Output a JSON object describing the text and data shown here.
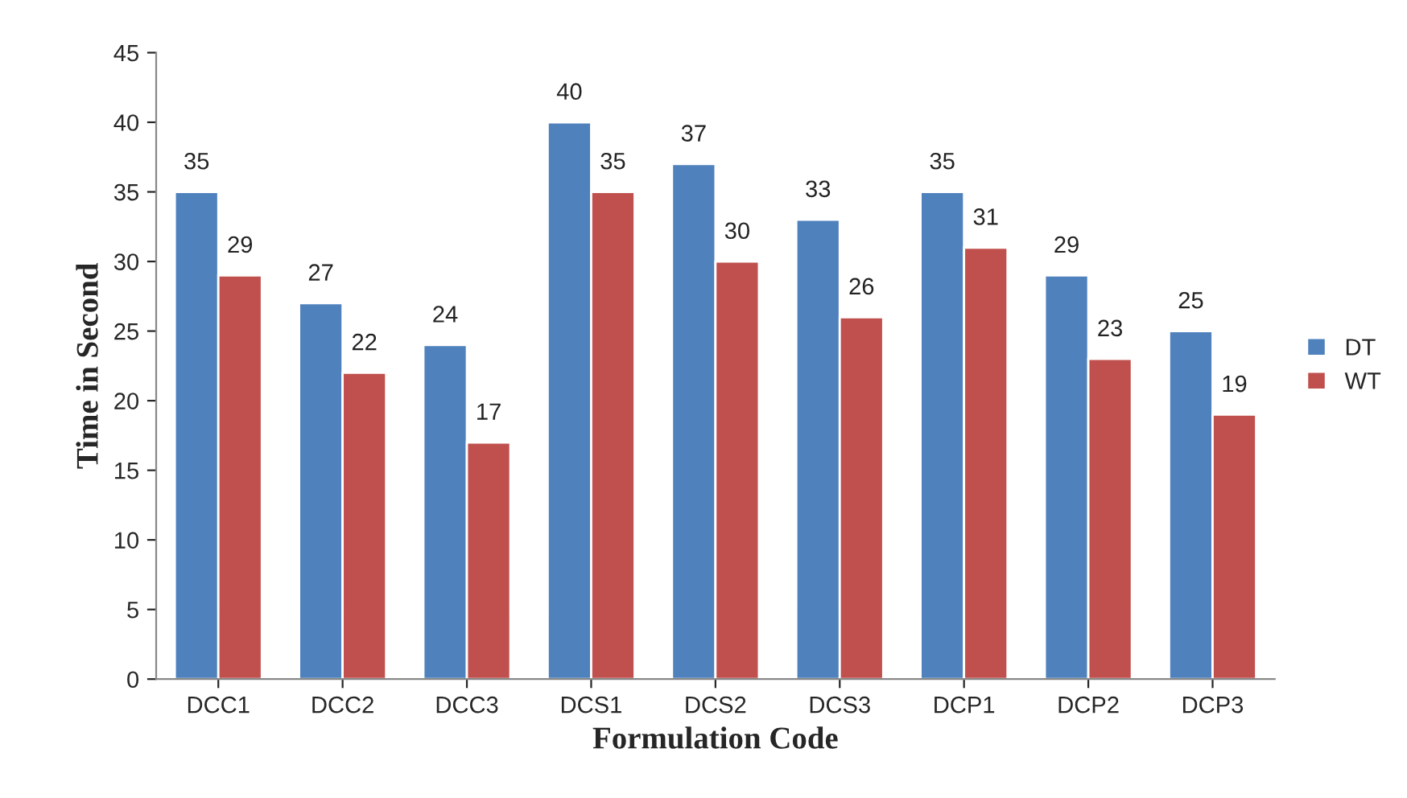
{
  "chart_data": {
    "type": "bar",
    "xlabel": "Formulation Code",
    "ylabel": "Time in Second",
    "categories": [
      "DCC1",
      "DCC2",
      "DCC3",
      "DCS1",
      "DCS2",
      "DCS3",
      "DCP1",
      "DCP2",
      "DCP3"
    ],
    "series": [
      {
        "name": "DT",
        "color": "#4f81bd",
        "values": [
          35,
          27,
          24,
          40,
          37,
          33,
          35,
          29,
          25
        ]
      },
      {
        "name": "WT",
        "color": "#c0504d",
        "values": [
          29,
          22,
          17,
          35,
          30,
          26,
          31,
          23,
          19
        ]
      }
    ],
    "ylim": [
      0,
      45
    ],
    "yticks": [
      0,
      5,
      10,
      15,
      20,
      25,
      30,
      35,
      40,
      45
    ],
    "data_labels": true,
    "legend": "right",
    "grid": false
  }
}
